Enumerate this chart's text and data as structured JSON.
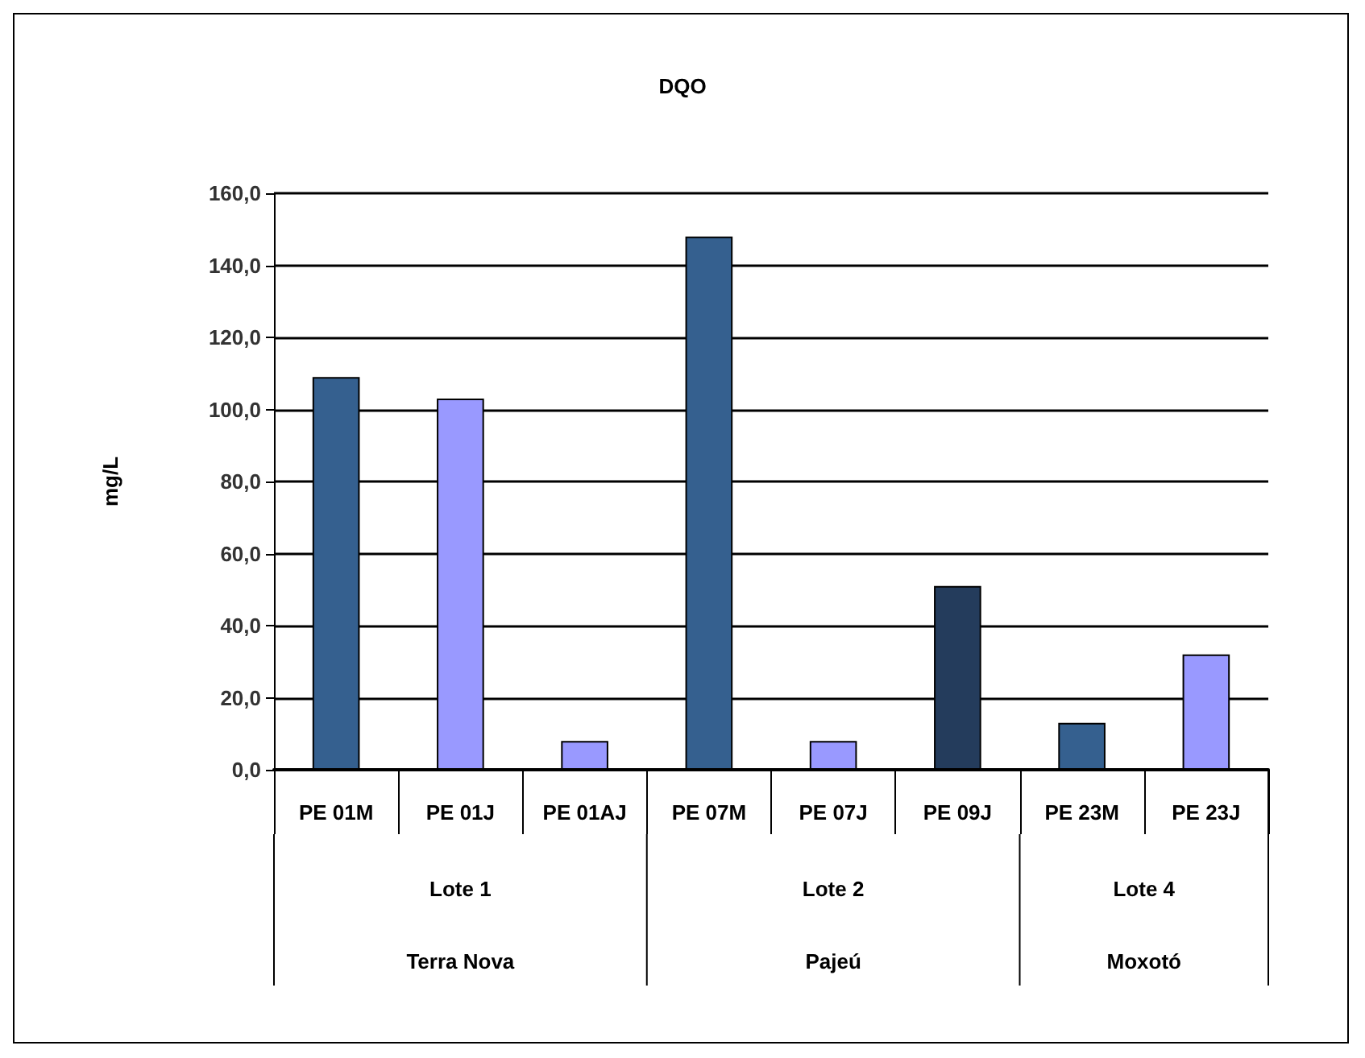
{
  "chart_data": {
    "type": "bar",
    "title": "DQO",
    "ylabel": "mg/L",
    "categories": [
      "PE 01M",
      "PE 01J",
      "PE 01AJ",
      "PE 07M",
      "PE 07J",
      "PE 09J",
      "PE 23M",
      "PE 23J"
    ],
    "values": [
      109,
      103,
      8,
      148,
      8,
      51,
      13,
      32
    ],
    "colors": [
      "#35608f",
      "#9999ff",
      "#9999ff",
      "#35608f",
      "#9999ff",
      "#243c5c",
      "#35608f",
      "#9999ff"
    ],
    "ylim": [
      0,
      160
    ],
    "yticks": [
      {
        "value": 0,
        "label": "0,0"
      },
      {
        "value": 20,
        "label": "20,0"
      },
      {
        "value": 40,
        "label": "40,0"
      },
      {
        "value": 60,
        "label": "60,0"
      },
      {
        "value": 80,
        "label": "80,0"
      },
      {
        "value": 100,
        "label": "100,0"
      },
      {
        "value": 120,
        "label": "120,0"
      },
      {
        "value": 140,
        "label": "140,0"
      },
      {
        "value": 160,
        "label": "160,0"
      }
    ],
    "grid": "y",
    "annotations": [
      "Lote 1",
      "Lote 2",
      "Lote 4",
      "Terra Nova",
      "Pajeú",
      "Moxotó"
    ]
  }
}
